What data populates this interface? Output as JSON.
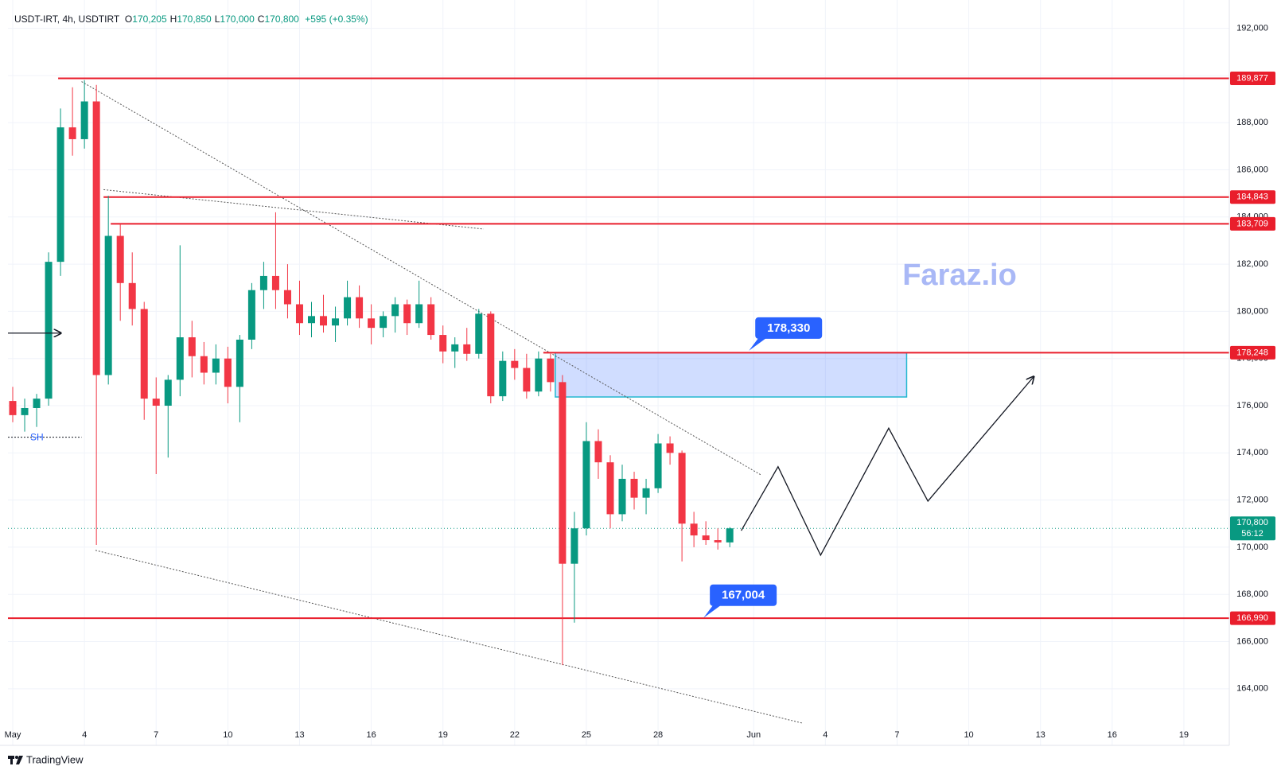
{
  "header": {
    "symbol": "USDT-IRT, 4h, USDTIRT",
    "ohlc": [
      {
        "key": "O",
        "label": "170,205"
      },
      {
        "key": "H",
        "label": "170,850"
      },
      {
        "key": "L",
        "label": "170,000"
      },
      {
        "key": "C",
        "label": "170,800"
      }
    ],
    "change": "+595 (+0.35%)"
  },
  "chart_data": {
    "type": "candlestick",
    "x": [
      0,
      0.5,
      1,
      1.5,
      2,
      2.5,
      3,
      3.5,
      4,
      4.5,
      5,
      5.5,
      6,
      6.5,
      7,
      7.5,
      8,
      8.5,
      9,
      9.5,
      10,
      10.5,
      11,
      11.5,
      12,
      12.5,
      13,
      13.5,
      14,
      14.5,
      15,
      15.5,
      16,
      16.5,
      17,
      17.5,
      18,
      18.5,
      19,
      19.5,
      20,
      20.5,
      21,
      21.5,
      22,
      22.5,
      23,
      23.5,
      24,
      24.5,
      25,
      25.5,
      26,
      26.5,
      27,
      27.5,
      28,
      28.5,
      29,
      29.5,
      30
    ],
    "open": [
      176200,
      175600,
      175900,
      176300,
      182100,
      187800,
      187300,
      188900,
      177300,
      183200,
      181200,
      180100,
      176300,
      176000,
      177100,
      178900,
      178100,
      177400,
      178000,
      176800,
      178800,
      180900,
      181500,
      180900,
      180300,
      179500,
      179800,
      179400,
      179700,
      180600,
      179700,
      179300,
      179800,
      180300,
      179500,
      180300,
      179000,
      178300,
      178600,
      178200,
      179900,
      176400,
      177900,
      177600,
      176600,
      178000,
      177000,
      169300,
      170800,
      174500,
      173600,
      171400,
      172900,
      172100,
      172500,
      174400,
      174000,
      171000,
      170500,
      170300,
      170205
    ],
    "high": [
      176800,
      176300,
      176500,
      182500,
      188600,
      189500,
      189800,
      189600,
      184900,
      183700,
      182500,
      180400,
      177200,
      177300,
      182800,
      179600,
      178700,
      178600,
      178500,
      179000,
      181200,
      182100,
      184200,
      182000,
      181300,
      180400,
      180700,
      180200,
      181300,
      181100,
      180300,
      180000,
      180600,
      180500,
      181300,
      180600,
      179400,
      178900,
      179300,
      180100,
      180000,
      178300,
      178400,
      178200,
      178300,
      178200,
      177300,
      171500,
      175300,
      175000,
      173900,
      173500,
      173200,
      172900,
      174800,
      174700,
      174100,
      171500,
      171100,
      170800,
      170850
    ],
    "low": [
      175300,
      174900,
      175100,
      176000,
      181500,
      186600,
      186900,
      170100,
      176900,
      179600,
      179400,
      175400,
      173100,
      173800,
      176400,
      177200,
      176900,
      176900,
      176100,
      175300,
      178400,
      180100,
      180100,
      179700,
      179000,
      178900,
      179100,
      178700,
      179400,
      179300,
      178600,
      178900,
      179100,
      179000,
      179300,
      178800,
      177800,
      177600,
      177900,
      178000,
      176100,
      176200,
      177100,
      176300,
      176400,
      176600,
      165000,
      166800,
      170500,
      172900,
      170800,
      171100,
      171600,
      171400,
      172300,
      173500,
      169400,
      170000,
      170100,
      169900,
      170000
    ],
    "close": [
      175600,
      175900,
      176300,
      182100,
      187800,
      187300,
      188900,
      177300,
      183200,
      181200,
      180100,
      176300,
      176000,
      177100,
      178900,
      178100,
      177400,
      178000,
      176800,
      178800,
      180900,
      181500,
      180900,
      180300,
      179500,
      179800,
      179400,
      179700,
      180600,
      179700,
      179300,
      179800,
      180300,
      179500,
      180300,
      179000,
      178300,
      178600,
      178200,
      179900,
      176400,
      177900,
      177600,
      176600,
      178000,
      177000,
      169300,
      170800,
      174500,
      173600,
      171400,
      172900,
      172100,
      172500,
      174400,
      174000,
      171000,
      170500,
      170300,
      170205,
      170800
    ],
    "up_color": "#089981",
    "down_color": "#f23645",
    "xlim": [
      -0.2,
      50.9
    ],
    "xticks": [
      {
        "value": 0,
        "label": "May"
      },
      {
        "value": 3,
        "label": "4"
      },
      {
        "value": 6,
        "label": "7"
      },
      {
        "value": 9,
        "label": "10"
      },
      {
        "value": 12,
        "label": "13"
      },
      {
        "value": 15,
        "label": "16"
      },
      {
        "value": 18,
        "label": "19"
      },
      {
        "value": 21,
        "label": "22"
      },
      {
        "value": 24,
        "label": "25"
      },
      {
        "value": 27,
        "label": "28"
      },
      {
        "value": 31,
        "label": "Jun"
      },
      {
        "value": 34,
        "label": "4"
      },
      {
        "value": 37,
        "label": "7"
      },
      {
        "value": 40,
        "label": "10"
      },
      {
        "value": 43,
        "label": "13"
      },
      {
        "value": 46,
        "label": "16"
      },
      {
        "value": 49,
        "label": "19"
      }
    ],
    "ylim": [
      161600,
      193200
    ],
    "yticks": [
      {
        "value": 164000,
        "label": "164,000"
      },
      {
        "value": 166000,
        "label": "166,000"
      },
      {
        "value": 168000,
        "label": "168,000"
      },
      {
        "value": 170000,
        "label": "170,000"
      },
      {
        "value": 172000,
        "label": "172,000"
      },
      {
        "value": 174000,
        "label": "174,000"
      },
      {
        "value": 176000,
        "label": "176,000"
      },
      {
        "value": 178000,
        "label": "178,000"
      },
      {
        "value": 180000,
        "label": "180,000"
      },
      {
        "value": 182000,
        "label": "182,000"
      },
      {
        "value": 184000,
        "label": "184,000"
      },
      {
        "value": 186000,
        "label": "186,000"
      },
      {
        "value": 188000,
        "label": "188,000"
      },
      {
        "value": 190000,
        "label": "190,000"
      },
      {
        "value": 192000,
        "label": "192,000"
      }
    ],
    "grid": true,
    "level_color": "#e91e2c",
    "levels": [
      {
        "value": 189877,
        "label": "189,877",
        "x0": 1.9
      },
      {
        "value": 184843,
        "label": "184,843",
        "x0": 3.8
      },
      {
        "value": 183709,
        "label": "183,709",
        "x0": 4.1
      },
      {
        "value": 178248,
        "label": "178,248",
        "x0": 22.2
      },
      {
        "value": 166990,
        "label": "166,990",
        "x0": -0.2
      }
    ],
    "last_price": {
      "value": 170800,
      "label": "170,800",
      "countdown": "56:12"
    },
    "zone": {
      "x": [
        22.7,
        37.4
      ],
      "y": [
        176370,
        178248
      ]
    },
    "callouts": [
      {
        "label": "178,330",
        "value": 178330,
        "x": 30.8
      },
      {
        "label": "167,004",
        "value": 167004,
        "x": 28.9
      }
    ],
    "trendlines": [
      {
        "x": [
          2.88,
          31.3
        ],
        "y": [
          189740,
          173070
        ]
      },
      {
        "x": [
          3.8,
          19.7
        ],
        "y": [
          185160,
          183490
        ]
      },
      {
        "x": [
          3.46,
          33.05
        ],
        "y": [
          169870,
          162540
        ]
      }
    ],
    "projection": {
      "x": [
        30.48,
        32.02,
        33.8,
        36.65,
        38.29,
        42.72
      ],
      "y": [
        170704,
        173414,
        169662,
        175047,
        171955,
        177236
      ]
    },
    "swing_high": {
      "label": "SH",
      "value": 174666,
      "x": [
        -0.2,
        2.88
      ]
    },
    "arrow": {
      "value": 179077,
      "x": [
        -0.2,
        2.02
      ]
    },
    "watermark": "Faraz.io"
  },
  "footer": {
    "brand": "TradingView"
  }
}
